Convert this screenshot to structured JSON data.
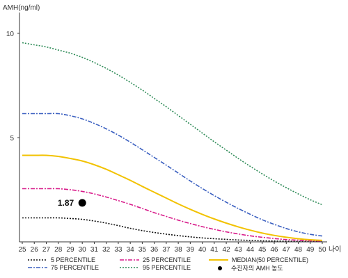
{
  "chart_data": {
    "type": "line",
    "ylabel": "AMH(ng/ml)",
    "xlabel": "나이",
    "xlim": [
      25,
      50
    ],
    "ylim": [
      0,
      11
    ],
    "x": [
      25,
      26,
      27,
      28,
      29,
      30,
      31,
      32,
      33,
      34,
      35,
      36,
      37,
      38,
      39,
      40,
      41,
      42,
      43,
      44,
      45,
      46,
      47,
      48,
      49,
      50
    ],
    "x_ticks": [
      25,
      26,
      27,
      28,
      29,
      30,
      31,
      32,
      33,
      34,
      35,
      36,
      37,
      38,
      39,
      40,
      41,
      42,
      43,
      44,
      45,
      46,
      47,
      48,
      49,
      50
    ],
    "y_ticks": [
      5,
      10
    ],
    "grid": false,
    "legend_position": "bottom",
    "series": [
      {
        "name": "5 PERCENTILE",
        "color": "#111111",
        "dash": "2,2",
        "values": [
          1.15,
          1.15,
          1.15,
          1.15,
          1.12,
          1.08,
          1.0,
          0.9,
          0.78,
          0.65,
          0.54,
          0.45,
          0.37,
          0.3,
          0.24,
          0.19,
          0.15,
          0.12,
          0.09,
          0.07,
          0.05,
          0.04,
          0.03,
          0.02,
          0.02,
          0.01
        ]
      },
      {
        "name": "75 PERCENTILE",
        "color": "#3a5fc0",
        "dash": "6,2,2,2",
        "values": [
          6.15,
          6.15,
          6.15,
          6.15,
          6.05,
          5.9,
          5.68,
          5.42,
          5.12,
          4.78,
          4.42,
          4.05,
          3.68,
          3.3,
          2.92,
          2.56,
          2.22,
          1.9,
          1.6,
          1.32,
          1.06,
          0.84,
          0.64,
          0.48,
          0.36,
          0.28
        ]
      },
      {
        "name": "25 PERCENTILE",
        "color": "#d81b8a",
        "dash": "6,2,2,2",
        "values": [
          2.55,
          2.55,
          2.55,
          2.55,
          2.5,
          2.42,
          2.3,
          2.15,
          1.98,
          1.8,
          1.6,
          1.4,
          1.22,
          1.04,
          0.88,
          0.73,
          0.6,
          0.48,
          0.38,
          0.29,
          0.22,
          0.16,
          0.11,
          0.08,
          0.05,
          0.04
        ]
      },
      {
        "name": "95 PERCENTILE",
        "color": "#2e8b57",
        "dash": "2,2",
        "values": [
          9.55,
          9.45,
          9.35,
          9.2,
          9.05,
          8.85,
          8.6,
          8.32,
          8.0,
          7.65,
          7.28,
          6.88,
          6.48,
          6.06,
          5.64,
          5.22,
          4.8,
          4.4,
          4.0,
          3.62,
          3.26,
          2.92,
          2.6,
          2.3,
          2.02,
          1.78
        ]
      },
      {
        "name": "MEDIAN(50 PERCENTILE)",
        "color": "#f2c200",
        "dash": "",
        "values": [
          4.15,
          4.15,
          4.15,
          4.1,
          4.0,
          3.88,
          3.7,
          3.48,
          3.22,
          2.95,
          2.66,
          2.38,
          2.1,
          1.82,
          1.56,
          1.32,
          1.1,
          0.9,
          0.72,
          0.56,
          0.42,
          0.31,
          0.22,
          0.15,
          0.1,
          0.07
        ]
      }
    ],
    "marker": {
      "name": "수진자의 AMH 농도",
      "x": 30,
      "y": 1.87,
      "label": "1.87"
    }
  }
}
